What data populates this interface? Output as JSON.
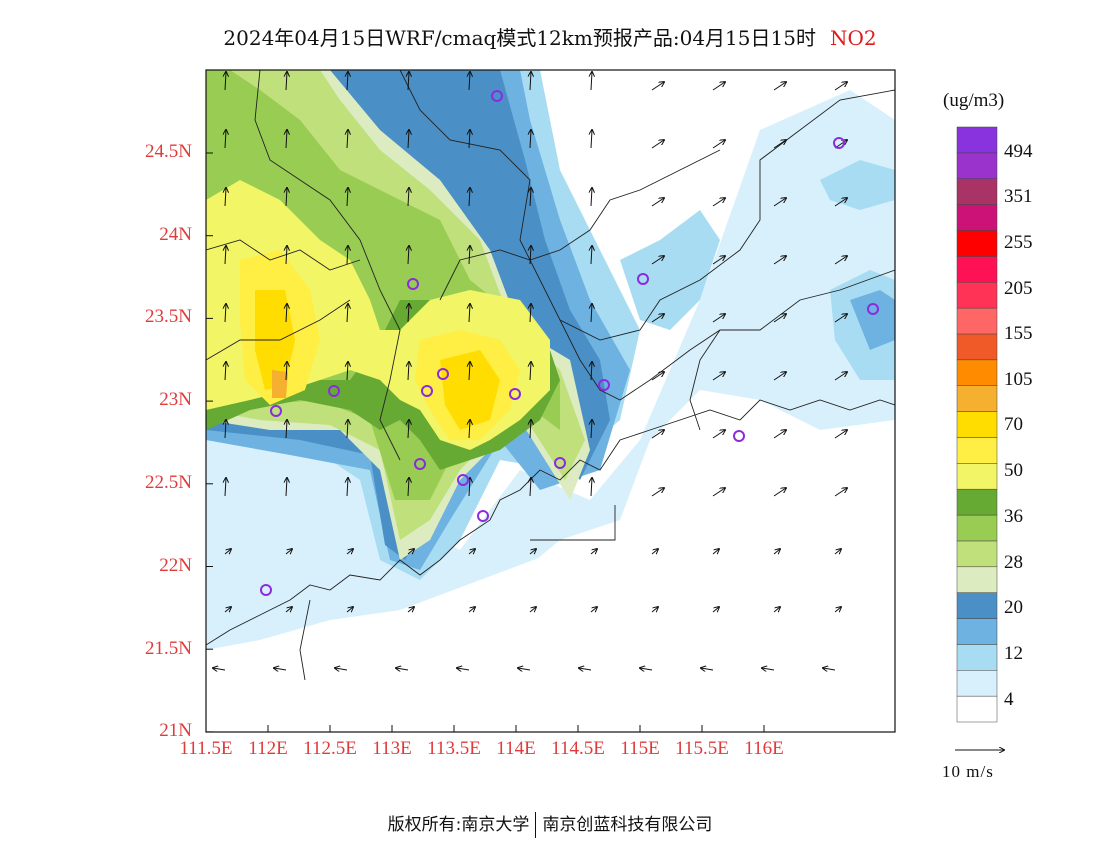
{
  "title": {
    "main": "2024年04月15日WRF/cmaq模式12km预报产品:04月15日15时",
    "pollutant": "NO2"
  },
  "axes": {
    "lat_labels": [
      "24.5N",
      "24N",
      "23.5N",
      "23N",
      "22.5N",
      "22N",
      "21.5N",
      "21N"
    ],
    "lon_labels": [
      "111.5E",
      "112E",
      "112.5E",
      "113E",
      "113.5E",
      "114E",
      "114.5E",
      "115E",
      "115.5E",
      "116E"
    ]
  },
  "colorbar": {
    "units": "(ug/m3)",
    "labels": [
      "494",
      "351",
      "255",
      "205",
      "155",
      "105",
      "70",
      "50",
      "36",
      "28",
      "20",
      "12",
      "4"
    ],
    "colors": [
      "#ffffff",
      "#d8f0fb",
      "#a8dcf3",
      "#6db2e0",
      "#4a90c6",
      "#dcecc0",
      "#bfe07a",
      "#99cc52",
      "#66aa33",
      "#f2f566",
      "#ffee44",
      "#ffdd00",
      "#f5b030",
      "#ff8c00",
      "#f05a28",
      "#ff6666",
      "#ff3355",
      "#ff1155",
      "#ff0000",
      "#cc1177",
      "#aa3366",
      "#9933cc",
      "#8833dd"
    ]
  },
  "legend": {
    "wind_reference": "10 m/s"
  },
  "colors": {
    "axis_label": "#e03a3a",
    "station_marker": "#8a2be2"
  },
  "footer": {
    "left": "版权所有:南京大学",
    "right": "南京创蓝科技有限公司"
  }
}
